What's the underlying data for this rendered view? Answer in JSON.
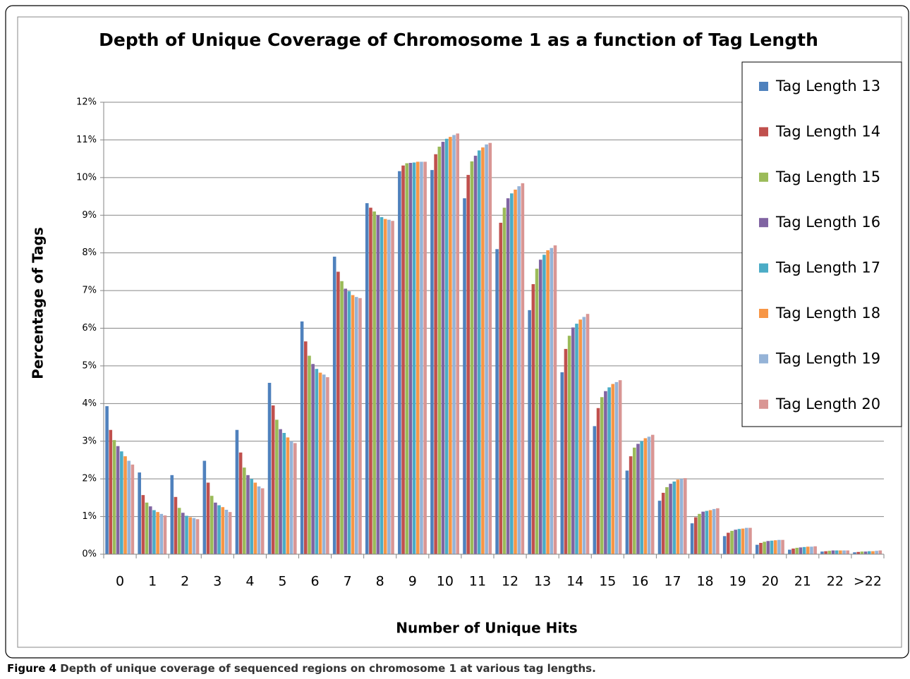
{
  "chart_data": {
    "type": "bar",
    "title": "Depth of Unique Coverage of Chromosome 1  as a function of Tag Length",
    "x_label": "Number of Unique Hits",
    "y_label": "Percentage of Tags",
    "categories": [
      "0",
      "1",
      "2",
      "3",
      "4",
      "5",
      "6",
      "7",
      "8",
      "9",
      "10",
      "11",
      "12",
      "13",
      "14",
      "15",
      "16",
      "17",
      "18",
      "19",
      "20",
      "21",
      "22",
      ">22"
    ],
    "series": [
      {
        "name": "Tag Length 13",
        "color": "#4F81BD",
        "values": [
          3.93,
          2.17,
          2.1,
          2.48,
          3.3,
          4.55,
          6.18,
          7.9,
          9.32,
          10.17,
          10.2,
          9.45,
          8.1,
          6.48,
          4.83,
          3.4,
          2.22,
          1.42,
          0.82,
          0.48,
          0.25,
          0.12,
          0.07,
          0.05
        ]
      },
      {
        "name": "Tag Length 14",
        "color": "#C0504D",
        "values": [
          3.3,
          1.57,
          1.52,
          1.9,
          2.7,
          3.95,
          5.65,
          7.5,
          9.2,
          10.32,
          10.62,
          10.07,
          8.8,
          7.17,
          5.45,
          3.88,
          2.6,
          1.63,
          0.98,
          0.57,
          0.3,
          0.15,
          0.08,
          0.06
        ]
      },
      {
        "name": "Tag Length 15",
        "color": "#9BBB59",
        "values": [
          3.03,
          1.37,
          1.23,
          1.55,
          2.3,
          3.57,
          5.27,
          7.25,
          9.1,
          10.38,
          10.82,
          10.43,
          9.2,
          7.58,
          5.8,
          4.17,
          2.83,
          1.78,
          1.07,
          0.62,
          0.33,
          0.17,
          0.09,
          0.07
        ]
      },
      {
        "name": "Tag Length 16",
        "color": "#8064A2",
        "values": [
          2.87,
          1.27,
          1.1,
          1.37,
          2.1,
          3.32,
          5.05,
          7.05,
          9.0,
          10.39,
          10.95,
          10.58,
          9.45,
          7.82,
          6.02,
          4.33,
          2.93,
          1.87,
          1.13,
          0.65,
          0.35,
          0.18,
          0.1,
          0.07
        ]
      },
      {
        "name": "Tag Length 17",
        "color": "#4BACC6",
        "values": [
          2.73,
          1.17,
          1.02,
          1.3,
          2.0,
          3.22,
          4.92,
          6.98,
          8.95,
          10.4,
          11.03,
          10.72,
          9.58,
          7.95,
          6.12,
          4.43,
          3.0,
          1.93,
          1.15,
          0.67,
          0.36,
          0.19,
          0.1,
          0.08
        ]
      },
      {
        "name": "Tag Length 18",
        "color": "#F79646",
        "values": [
          2.6,
          1.12,
          0.98,
          1.25,
          1.9,
          3.1,
          4.82,
          6.88,
          8.9,
          10.42,
          11.08,
          10.8,
          9.68,
          8.07,
          6.23,
          4.52,
          3.08,
          1.98,
          1.17,
          0.68,
          0.37,
          0.2,
          0.1,
          0.08
        ]
      },
      {
        "name": "Tag Length 19",
        "color": "#95B3D7",
        "values": [
          2.48,
          1.07,
          0.96,
          1.18,
          1.8,
          3.0,
          4.77,
          6.83,
          8.88,
          10.42,
          11.13,
          10.88,
          9.77,
          8.13,
          6.3,
          4.57,
          3.12,
          2.0,
          1.2,
          0.7,
          0.38,
          0.2,
          0.1,
          0.09
        ]
      },
      {
        "name": "Tag Length 20",
        "color": "#D99694",
        "values": [
          2.38,
          1.03,
          0.93,
          1.12,
          1.75,
          2.95,
          4.7,
          6.8,
          8.85,
          10.42,
          11.17,
          10.92,
          9.85,
          8.2,
          6.38,
          4.62,
          3.17,
          2.02,
          1.22,
          0.7,
          0.38,
          0.21,
          0.1,
          0.1
        ]
      }
    ],
    "ylim": [
      0,
      12
    ],
    "yticks": [
      {
        "value": 0,
        "label": "0%"
      },
      {
        "value": 1,
        "label": "1%"
      },
      {
        "value": 2,
        "label": "2%"
      },
      {
        "value": 3,
        "label": "3%"
      },
      {
        "value": 4,
        "label": "4%"
      },
      {
        "value": 5,
        "label": "5%"
      },
      {
        "value": 6,
        "label": "6%"
      },
      {
        "value": 7,
        "label": "7%"
      },
      {
        "value": 8,
        "label": "8%"
      },
      {
        "value": 9,
        "label": "9%"
      },
      {
        "value": 10,
        "label": "10%"
      },
      {
        "value": 11,
        "label": "11%"
      },
      {
        "value": 12,
        "label": "12%"
      }
    ],
    "grid": true,
    "legend": "right"
  },
  "caption": {
    "label": "Figure 4",
    "text": " Depth of unique coverage of sequenced regions on chromosome 1 at various tag lengths."
  }
}
